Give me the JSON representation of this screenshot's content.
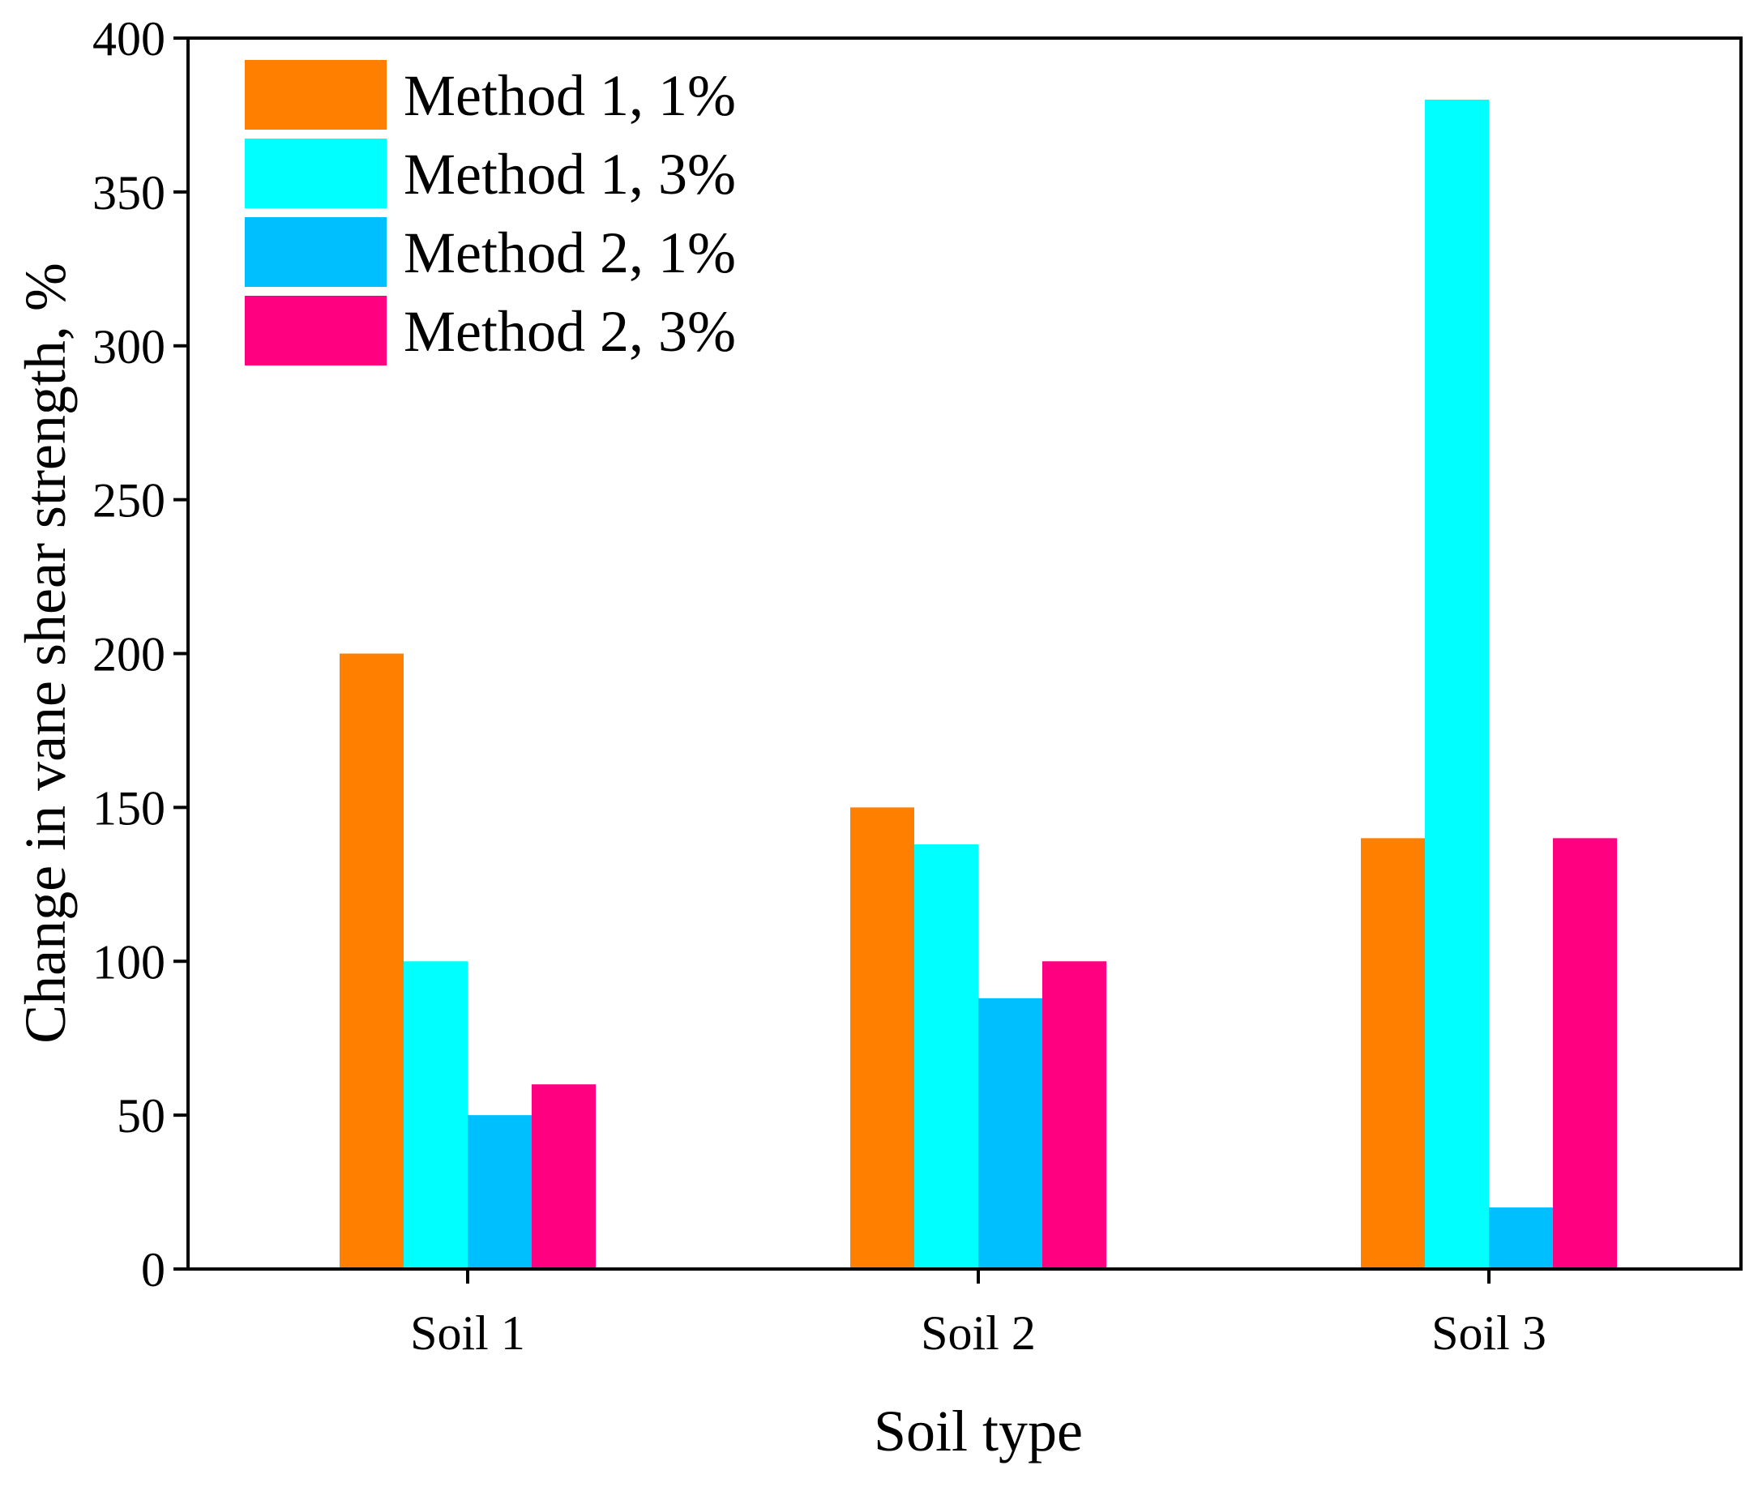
{
  "chart_data": {
    "type": "bar",
    "title": "",
    "xlabel": "Soil type",
    "ylabel": "Change in vane shear strength, %",
    "categories": [
      "Soil 1",
      "Soil 2",
      "Soil 3"
    ],
    "ylim": [
      0,
      400
    ],
    "yticks": [
      0,
      50,
      100,
      150,
      200,
      250,
      300,
      350,
      400
    ],
    "grid": false,
    "legend_position": "top-left",
    "series": [
      {
        "name": "Method 1, 1%",
        "color": "#FF8000",
        "values": [
          200,
          150,
          140
        ]
      },
      {
        "name": "Method 1, 3%",
        "color": "#00FFFF",
        "values": [
          100,
          138,
          380
        ]
      },
      {
        "name": "Method 2, 1%",
        "color": "#00BFFF",
        "values": [
          50,
          88,
          20
        ]
      },
      {
        "name": "Method 2, 3%",
        "color": "#FF0080",
        "values": [
          60,
          100,
          140
        ]
      }
    ]
  }
}
